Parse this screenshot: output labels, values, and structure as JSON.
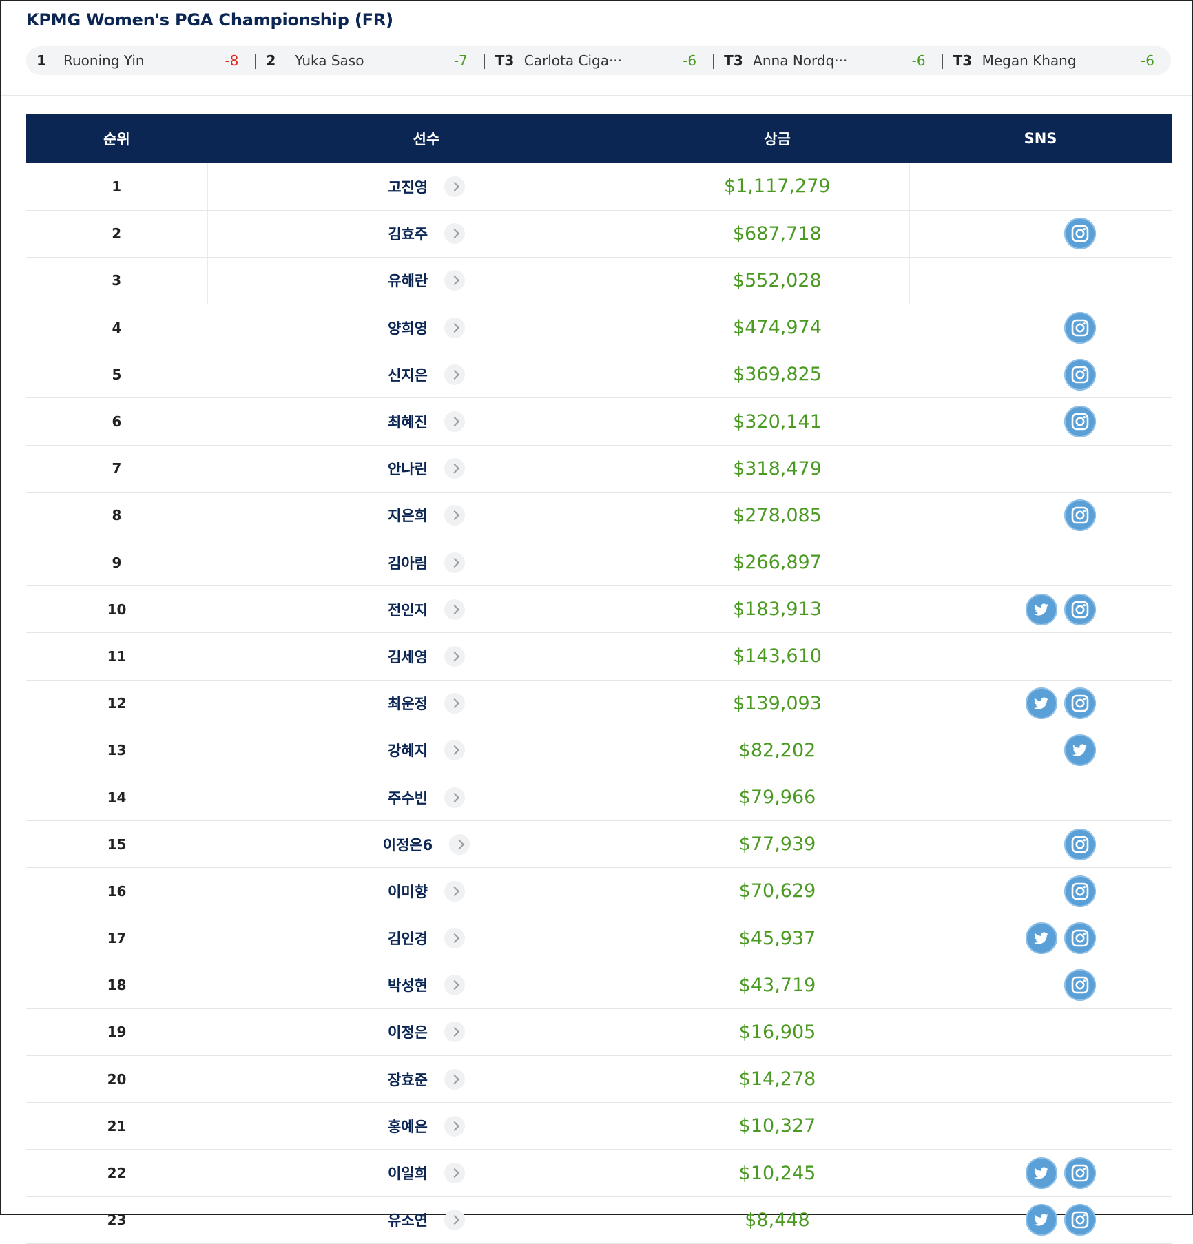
{
  "tournament": {
    "title": "KPMG Women's PGA Championship (FR)"
  },
  "leaderboard": [
    {
      "pos": "1",
      "name": "Ruoning Yin",
      "score": "-8",
      "score_color": "red"
    },
    {
      "pos": "2",
      "name": "Yuka Saso",
      "score": "-7",
      "score_color": "green"
    },
    {
      "pos": "T3",
      "name": "Carlota Ciga···",
      "score": "-6",
      "score_color": "green"
    },
    {
      "pos": "T3",
      "name": "Anna Nordq···",
      "score": "-6",
      "score_color": "green"
    },
    {
      "pos": "T3",
      "name": "Megan Khang",
      "score": "-6",
      "score_color": "green"
    }
  ],
  "table": {
    "headers": {
      "rank": "순위",
      "player": "선수",
      "prize": "상금",
      "sns": "SNS"
    },
    "rows": [
      {
        "rank": "1",
        "player": "고진영",
        "prize": "$1,117,279",
        "sns": []
      },
      {
        "rank": "2",
        "player": "김효주",
        "prize": "$687,718",
        "sns": [
          "instagram"
        ]
      },
      {
        "rank": "3",
        "player": "유해란",
        "prize": "$552,028",
        "sns": []
      },
      {
        "rank": "4",
        "player": "양희영",
        "prize": "$474,974",
        "sns": [
          "instagram"
        ]
      },
      {
        "rank": "5",
        "player": "신지은",
        "prize": "$369,825",
        "sns": [
          "instagram"
        ]
      },
      {
        "rank": "6",
        "player": "최혜진",
        "prize": "$320,141",
        "sns": [
          "instagram"
        ]
      },
      {
        "rank": "7",
        "player": "안나린",
        "prize": "$318,479",
        "sns": []
      },
      {
        "rank": "8",
        "player": "지은희",
        "prize": "$278,085",
        "sns": [
          "instagram"
        ]
      },
      {
        "rank": "9",
        "player": "김아림",
        "prize": "$266,897",
        "sns": []
      },
      {
        "rank": "10",
        "player": "전인지",
        "prize": "$183,913",
        "sns": [
          "twitter",
          "instagram"
        ]
      },
      {
        "rank": "11",
        "player": "김세영",
        "prize": "$143,610",
        "sns": []
      },
      {
        "rank": "12",
        "player": "최운정",
        "prize": "$139,093",
        "sns": [
          "twitter",
          "instagram"
        ]
      },
      {
        "rank": "13",
        "player": "강혜지",
        "prize": "$82,202",
        "sns": [
          "twitter"
        ]
      },
      {
        "rank": "14",
        "player": "주수빈",
        "prize": "$79,966",
        "sns": []
      },
      {
        "rank": "15",
        "player": "이정은6",
        "prize": "$77,939",
        "sns": [
          "instagram"
        ]
      },
      {
        "rank": "16",
        "player": "이미향",
        "prize": "$70,629",
        "sns": [
          "instagram"
        ]
      },
      {
        "rank": "17",
        "player": "김인경",
        "prize": "$45,937",
        "sns": [
          "twitter",
          "instagram"
        ]
      },
      {
        "rank": "18",
        "player": "박성현",
        "prize": "$43,719",
        "sns": [
          "instagram"
        ]
      },
      {
        "rank": "19",
        "player": "이정은",
        "prize": "$16,905",
        "sns": []
      },
      {
        "rank": "20",
        "player": "장효준",
        "prize": "$14,278",
        "sns": []
      },
      {
        "rank": "21",
        "player": "홍예은",
        "prize": "$10,327",
        "sns": []
      },
      {
        "rank": "22",
        "player": "이일희",
        "prize": "$10,245",
        "sns": [
          "twitter",
          "instagram"
        ]
      },
      {
        "rank": "23",
        "player": "유소연",
        "prize": "$8,448",
        "sns": [
          "twitter",
          "instagram"
        ]
      }
    ]
  },
  "colors": {
    "navy": "#0b2653",
    "prize_green": "#4a9a22",
    "score_red": "#e0271f",
    "icon_blue": "#5a9fd6"
  }
}
